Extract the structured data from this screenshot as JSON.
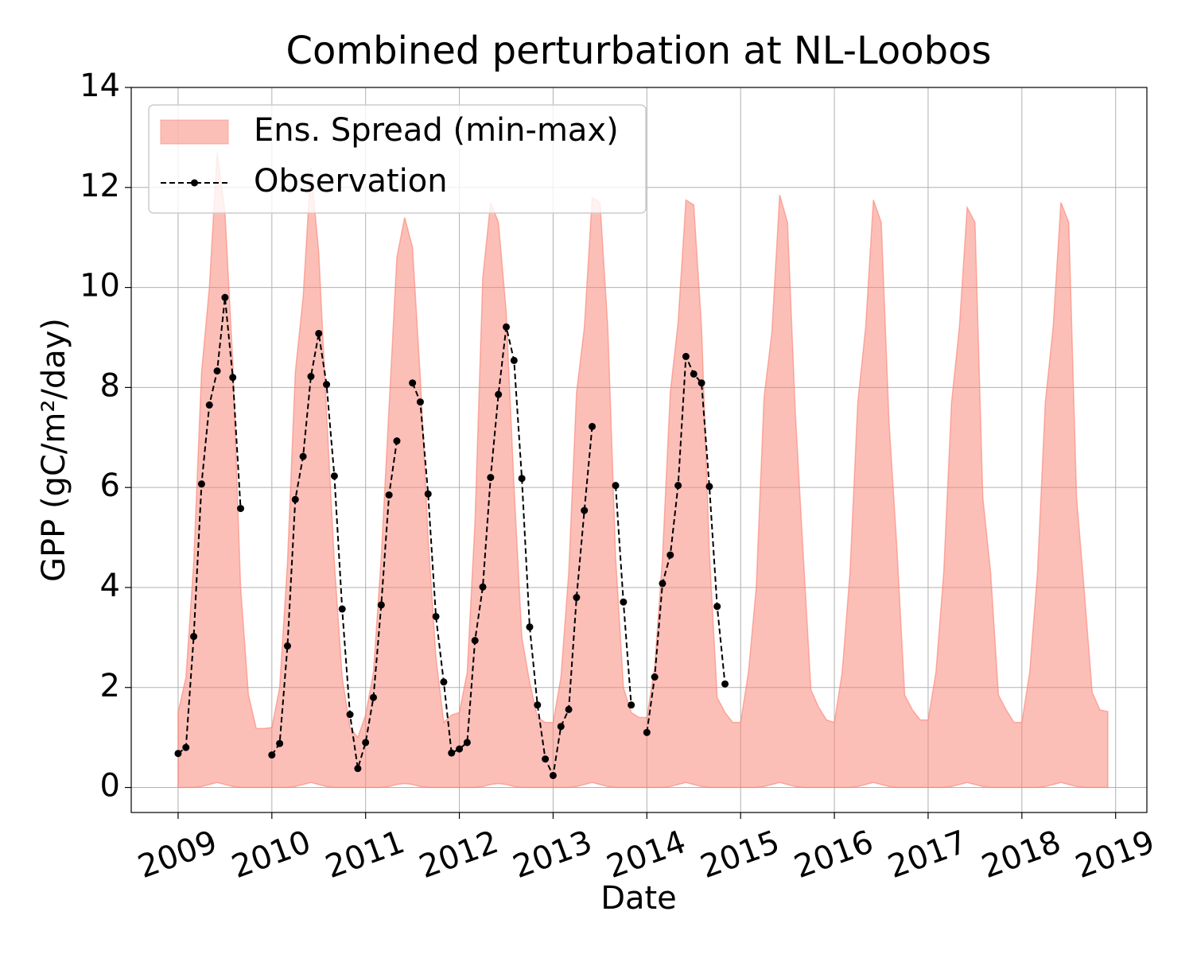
{
  "chart_data": {
    "type": "line",
    "title": "Combined perturbation at NL-Loobos",
    "x_label": "Date",
    "y_label": "GPP  (gC/m²/day)",
    "x": [
      "2009-01",
      "2009-02",
      "2009-03",
      "2009-04",
      "2009-05",
      "2009-06",
      "2009-07",
      "2009-08",
      "2009-09",
      "2009-10",
      "2009-11",
      "2009-12",
      "2010-01",
      "2010-02",
      "2010-03",
      "2010-04",
      "2010-05",
      "2010-06",
      "2010-07",
      "2010-08",
      "2010-09",
      "2010-10",
      "2010-11",
      "2010-12",
      "2011-01",
      "2011-02",
      "2011-03",
      "2011-04",
      "2011-05",
      "2011-06",
      "2011-07",
      "2011-08",
      "2011-09",
      "2011-10",
      "2011-11",
      "2011-12",
      "2012-01",
      "2012-02",
      "2012-03",
      "2012-04",
      "2012-05",
      "2012-06",
      "2012-07",
      "2012-08",
      "2012-09",
      "2012-10",
      "2012-11",
      "2012-12",
      "2013-01",
      "2013-02",
      "2013-03",
      "2013-04",
      "2013-05",
      "2013-06",
      "2013-07",
      "2013-08",
      "2013-09",
      "2013-10",
      "2013-11",
      "2013-12",
      "2014-01",
      "2014-02",
      "2014-03",
      "2014-04",
      "2014-05",
      "2014-06",
      "2014-07",
      "2014-08",
      "2014-09",
      "2014-10",
      "2014-11",
      "2014-12",
      "2015-01",
      "2015-02",
      "2015-03",
      "2015-04",
      "2015-05",
      "2015-06",
      "2015-07",
      "2015-08",
      "2015-09",
      "2015-10",
      "2015-11",
      "2015-12",
      "2016-01",
      "2016-02",
      "2016-03",
      "2016-04",
      "2016-05",
      "2016-06",
      "2016-07",
      "2016-08",
      "2016-09",
      "2016-10",
      "2016-11",
      "2016-12",
      "2017-01",
      "2017-02",
      "2017-03",
      "2017-04",
      "2017-05",
      "2017-06",
      "2017-07",
      "2017-08",
      "2017-09",
      "2017-10",
      "2017-11",
      "2017-12",
      "2018-01",
      "2018-02",
      "2018-03",
      "2018-04",
      "2018-05",
      "2018-06",
      "2018-07",
      "2018-08",
      "2018-09",
      "2018-10",
      "2018-11",
      "2018-12"
    ],
    "series": [
      {
        "name": "Ens. Spread (min-max)",
        "type": "band",
        "color": "#fa8072",
        "lower": [
          0,
          0,
          0,
          0.02,
          0.06,
          0.1,
          0.06,
          0.02,
          0,
          0,
          0,
          0,
          0,
          0,
          0,
          0.02,
          0.06,
          0.1,
          0.06,
          0.02,
          0,
          0,
          0,
          0,
          0,
          0,
          0,
          0.02,
          0.06,
          0.08,
          0.06,
          0.02,
          0,
          0,
          0,
          0,
          0,
          0,
          0,
          0.02,
          0.06,
          0.08,
          0.06,
          0.02,
          0,
          0,
          0,
          0,
          0,
          0,
          0,
          0.02,
          0.06,
          0.1,
          0.06,
          0.02,
          0,
          0,
          0,
          0,
          0,
          0,
          0,
          0.02,
          0.06,
          0.1,
          0.06,
          0.02,
          0,
          0,
          0,
          0,
          0,
          0,
          0,
          0.02,
          0.06,
          0.1,
          0.06,
          0.02,
          0,
          0,
          0,
          0,
          0,
          0,
          0,
          0.02,
          0.06,
          0.1,
          0.06,
          0.02,
          0,
          0,
          0,
          0,
          0,
          0,
          0,
          0.02,
          0.06,
          0.1,
          0.06,
          0.02,
          0,
          0,
          0,
          0,
          0,
          0,
          0,
          0.02,
          0.06,
          0.1,
          0.06,
          0.02,
          0,
          0,
          0,
          0
        ],
        "upper": [
          1.5,
          2.2,
          4.5,
          8.3,
          10,
          12.7,
          11.5,
          8.5,
          4,
          1.85,
          1.18,
          1.18,
          1.2,
          2,
          4.5,
          8.3,
          9.8,
          12.4,
          10.7,
          7.5,
          4.5,
          2.2,
          1.2,
          1,
          1.45,
          2.3,
          4.6,
          7.6,
          10.6,
          11.4,
          10.8,
          8.2,
          5,
          2.6,
          1.3,
          1.45,
          1.5,
          2.3,
          5.3,
          10.2,
          11.7,
          11.3,
          9.5,
          6,
          3,
          2.1,
          1.4,
          1.3,
          1.3,
          2.2,
          4.3,
          7.9,
          9.2,
          11.8,
          11.7,
          9.2,
          4.6,
          2,
          1.5,
          1.4,
          1.4,
          2.4,
          4.6,
          7.9,
          9.3,
          11.75,
          11.65,
          9.2,
          4.7,
          1.8,
          1.5,
          1.3,
          1.3,
          2.3,
          4,
          7.8,
          9.1,
          11.85,
          11.3,
          7.5,
          4.7,
          1.95,
          1.6,
          1.35,
          1.3,
          2.3,
          4.3,
          7.7,
          9.2,
          11.75,
          11.3,
          7.3,
          4.8,
          1.85,
          1.55,
          1.35,
          1.35,
          2.3,
          4.3,
          7.7,
          9.2,
          11.6,
          11.3,
          5.8,
          4.3,
          1.85,
          1.55,
          1.3,
          1.3,
          2.3,
          4.3,
          7.7,
          9.2,
          11.7,
          11.3,
          5.8,
          3.9,
          1.9,
          1.55,
          1.52
        ]
      },
      {
        "name": "Observation",
        "color": "#000000",
        "values": [
          0.68,
          0.8,
          3.02,
          6.07,
          7.65,
          8.33,
          9.8,
          8.2,
          5.58,
          null,
          null,
          null,
          0.65,
          0.88,
          2.83,
          5.76,
          6.62,
          8.22,
          9.08,
          8.06,
          6.23,
          3.57,
          1.46,
          0.38,
          0.9,
          1.8,
          3.65,
          5.85,
          6.93,
          null,
          8.09,
          7.71,
          5.87,
          3.42,
          2.11,
          0.69,
          0.77,
          0.9,
          2.94,
          4.01,
          6.2,
          7.86,
          9.21,
          8.54,
          6.18,
          3.21,
          1.65,
          0.57,
          0.24,
          1.22,
          1.56,
          3.8,
          5.54,
          7.22,
          null,
          null,
          6.04,
          3.71,
          1.65,
          null,
          1.1,
          2.21,
          4.08,
          4.65,
          6.04,
          8.62,
          8.27,
          8.09,
          6.02,
          3.62,
          2.07,
          null,
          null,
          null,
          null,
          null,
          null,
          null,
          null,
          null,
          null,
          null,
          null,
          null,
          null,
          null,
          null,
          null,
          null,
          null,
          null,
          null,
          null,
          null,
          null,
          null,
          null,
          null,
          null,
          null,
          null,
          null,
          null,
          null,
          null,
          null,
          null,
          null,
          null,
          null,
          null,
          null,
          null,
          null,
          null,
          null,
          null,
          null,
          null,
          null
        ]
      }
    ],
    "xlim": [
      "2008-07",
      "2019-05"
    ],
    "xticks": [
      2009,
      2010,
      2011,
      2012,
      2013,
      2014,
      2015,
      2016,
      2017,
      2018,
      2019
    ],
    "ylim": [
      -0.5,
      14
    ],
    "yticks": [
      0,
      2,
      4,
      6,
      8,
      10,
      12,
      14
    ],
    "grid": true,
    "legend": "upper left"
  }
}
